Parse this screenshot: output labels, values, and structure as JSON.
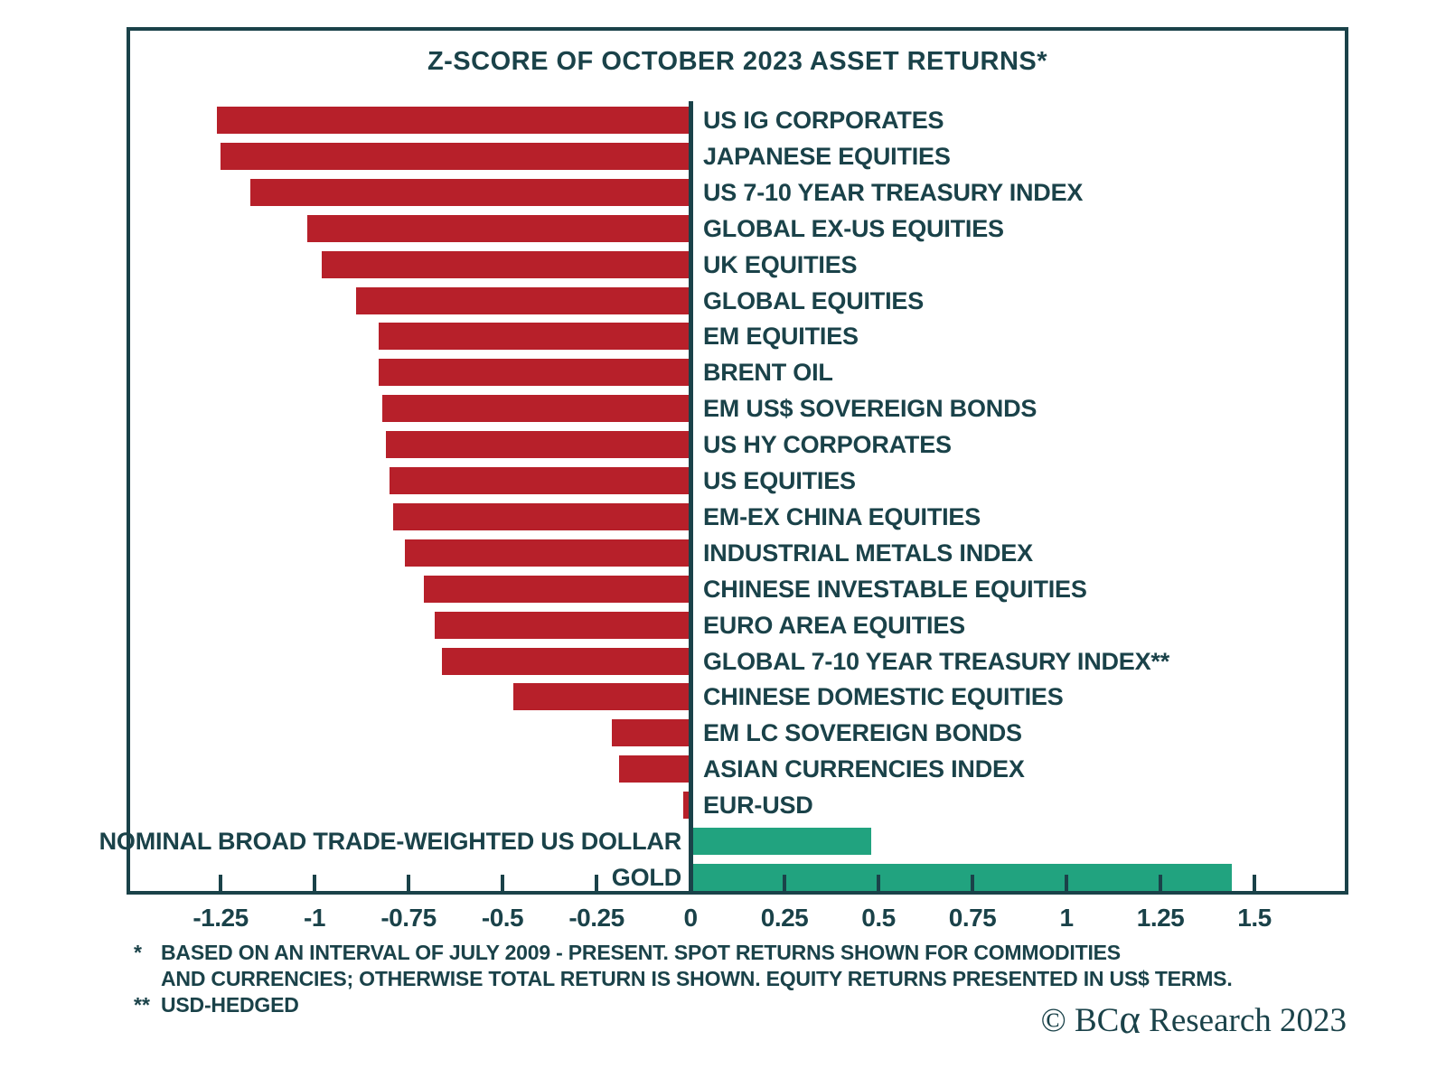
{
  "colors": {
    "text": "#1a4249",
    "negative_bar": "#b7202a",
    "positive_bar": "#21a37f",
    "border": "#1a4249",
    "background": "#ffffff"
  },
  "chart_data": {
    "type": "bar",
    "orientation": "horizontal",
    "title": "Z-SCORE OF OCTOBER 2023 ASSET RETURNS*",
    "xlabel": "",
    "ylabel": "",
    "xlim": [
      -1.5,
      1.75
    ],
    "grid": false,
    "legend": "none",
    "categories": [
      "US IG CORPORATES",
      "JAPANESE EQUITIES",
      "US 7-10 YEAR TREASURY INDEX",
      "GLOBAL EX-US EQUITIES",
      "UK EQUITIES",
      "GLOBAL EQUITIES",
      "EM EQUITIES",
      "BRENT OIL",
      "EM US$ SOVEREIGN BONDS",
      "US HY CORPORATES",
      "US EQUITIES",
      "EM-EX CHINA EQUITIES",
      "INDUSTRIAL METALS INDEX",
      "CHINESE INVESTABLE EQUITIES",
      "EURO AREA EQUITIES",
      "GLOBAL 7-10 YEAR TREASURY INDEX**",
      "CHINESE DOMESTIC EQUITIES",
      "EM LC SOVEREIGN BONDS",
      "ASIAN CURRENCIES INDEX",
      "EUR-USD",
      "NOMINAL BROAD TRADE-WEIGHTED US DOLLAR",
      "GOLD"
    ],
    "values": [
      -1.26,
      -1.25,
      -1.17,
      -1.02,
      -0.98,
      -0.89,
      -0.83,
      -0.83,
      -0.82,
      -0.81,
      -0.8,
      -0.79,
      -0.76,
      -0.71,
      -0.68,
      -0.66,
      -0.47,
      -0.21,
      -0.19,
      -0.02,
      0.48,
      1.44
    ],
    "xticks": [
      -1.25,
      -1,
      -0.75,
      -0.5,
      -0.25,
      0,
      0.25,
      0.5,
      0.75,
      1,
      1.25,
      1.5
    ],
    "xtick_labels": [
      "-1.25",
      "-1",
      "-0.75",
      "-0.5",
      "-0.25",
      "0",
      "0.25",
      "0.5",
      "0.75",
      "1",
      "1.25",
      "1.5"
    ]
  },
  "footnotes": [
    {
      "marker": "*",
      "text": "BASED ON AN INTERVAL OF JULY 2009 - PRESENT. SPOT RETURNS SHOWN FOR COMMODITIES\nAND CURRENCIES; OTHERWISE TOTAL RETURN IS SHOWN. EQUITY RETURNS PRESENTED IN US$ TERMS."
    },
    {
      "marker": "**",
      "text": "USD-HEDGED"
    }
  ],
  "credit": {
    "prefix": "© BC",
    "alpha": "α",
    "suffix": " Research 2023"
  }
}
